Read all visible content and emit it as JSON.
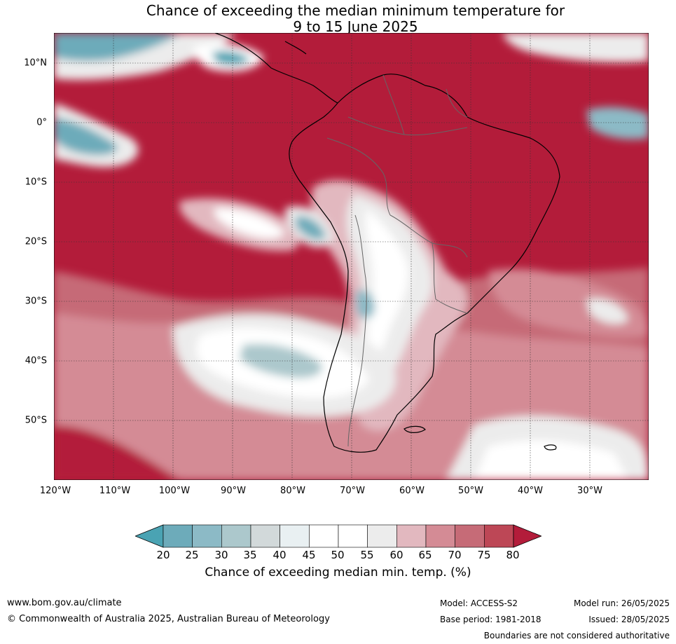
{
  "title": {
    "line1": "Chance of exceeding the median minimum temperature for",
    "line2": "9 to 15 June 2025"
  },
  "axes": {
    "lat_labels": [
      "10°N",
      "0°",
      "10°S",
      "20°S",
      "30°S",
      "40°S",
      "50°S"
    ],
    "lon_labels": [
      "120°W",
      "110°W",
      "100°W",
      "90°W",
      "80°W",
      "70°W",
      "60°W",
      "50°W",
      "40°W",
      "30°W"
    ]
  },
  "colorbar": {
    "ticks": [
      "20",
      "25",
      "30",
      "35",
      "40",
      "45",
      "50",
      "55",
      "60",
      "65",
      "70",
      "75",
      "80"
    ],
    "colors": [
      "#4aa3b3",
      "#6dabba",
      "#8cbac6",
      "#acc8cc",
      "#d2d9da",
      "#e9f0f2",
      "#ffffff",
      "#ffffff",
      "#ececec",
      "#e2b8bf",
      "#d48b95",
      "#c66b77",
      "#bd4756",
      "#b31c3a"
    ],
    "label": "Chance of exceeding median min. temp. (%)"
  },
  "footer": {
    "website": "www.bom.gov.au/climate",
    "copyright": "© Commonwealth of Australia 2025, Australian Bureau of Meteorology",
    "model": "Model: ACCESS-S2",
    "base_period": "Base period: 1981-2018",
    "model_run": "Model run: 26/05/2025",
    "issued": "Issued: 28/05/2025",
    "disclaimer": "Boundaries are not considered authoritative"
  }
}
